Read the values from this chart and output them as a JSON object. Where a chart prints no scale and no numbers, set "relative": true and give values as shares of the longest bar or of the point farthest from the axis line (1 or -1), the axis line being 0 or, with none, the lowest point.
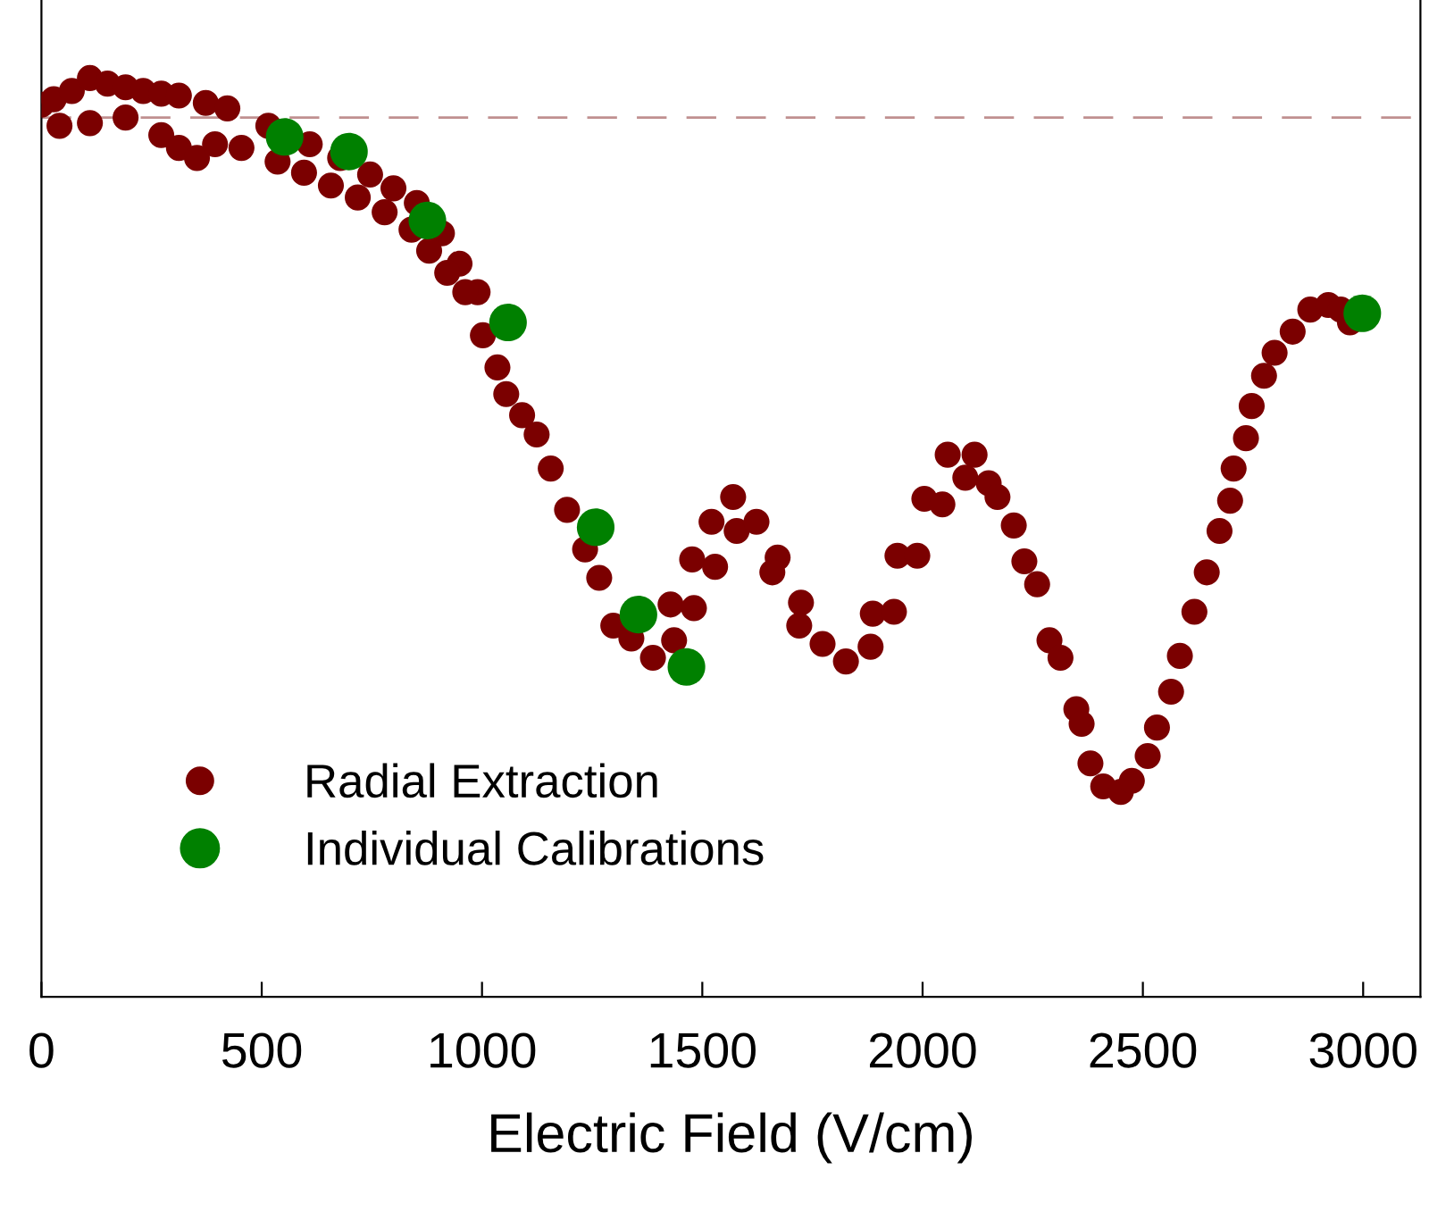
{
  "chart_data": {
    "type": "scatter",
    "relative": true,
    "xlabel": "Electric Field (V/cm)",
    "xlim": [
      0,
      3130
    ],
    "xticks": [
      0,
      500,
      1000,
      1500,
      2000,
      2500,
      3000
    ],
    "grid": false,
    "legend": "bottom left",
    "marker": "circle",
    "tick_labels": "x",
    "ref_lines": [
      {
        "axis": "y",
        "value": 0.957,
        "color": "#c09090",
        "line_style": "dashed"
      }
    ],
    "series": [
      {
        "name": "Radial Extraction",
        "color": "#7b0000",
        "x": [
          0,
          28,
          69,
          110,
          150,
          191,
          231,
          272,
          312,
          373,
          422,
          515,
          609,
          678,
          746,
          799,
          852,
          909,
          949,
          990,
          41,
          110,
          191,
          272,
          312,
          353,
          394,
          454,
          536,
          596,
          657,
          718,
          779,
          840,
          880,
          921,
          962,
          1002,
          1035,
          1055,
          1091,
          1124,
          1156,
          1193,
          1234,
          1266,
          1298,
          1339,
          1388,
          1436,
          1428,
          1481,
          1477,
          1529,
          1521,
          1570,
          1578,
          1623,
          1671,
          1659,
          1724,
          1720,
          1773,
          1826,
          1882,
          1887,
          1935,
          1943,
          1988,
          2004,
          2045,
          2057,
          2118,
          2097,
          2150,
          2170,
          2207,
          2231,
          2260,
          2288,
          2313,
          2349,
          2361,
          2381,
          2410,
          2450,
          2475,
          2511,
          2532,
          2564,
          2584,
          2617,
          2645,
          2674,
          2698,
          2706,
          2734,
          2747,
          2775,
          2799,
          2840,
          2880,
          2921,
          2949,
          2970
        ],
        "values": [
          0.971,
          0.977,
          0.986,
          1.0,
          0.994,
          0.99,
          0.986,
          0.983,
          0.981,
          0.973,
          0.967,
          0.948,
          0.928,
          0.913,
          0.895,
          0.88,
          0.864,
          0.831,
          0.798,
          0.767,
          0.948,
          0.951,
          0.957,
          0.938,
          0.924,
          0.913,
          0.928,
          0.924,
          0.909,
          0.897,
          0.883,
          0.87,
          0.854,
          0.835,
          0.812,
          0.788,
          0.767,
          0.72,
          0.685,
          0.656,
          0.633,
          0.612,
          0.575,
          0.53,
          0.487,
          0.456,
          0.404,
          0.39,
          0.369,
          0.388,
          0.427,
          0.423,
          0.476,
          0.468,
          0.517,
          0.544,
          0.507,
          0.517,
          0.478,
          0.462,
          0.429,
          0.404,
          0.384,
          0.365,
          0.381,
          0.417,
          0.419,
          0.48,
          0.48,
          0.542,
          0.536,
          0.59,
          0.59,
          0.565,
          0.559,
          0.544,
          0.513,
          0.474,
          0.449,
          0.388,
          0.369,
          0.313,
          0.297,
          0.254,
          0.229,
          0.223,
          0.235,
          0.262,
          0.293,
          0.332,
          0.371,
          0.419,
          0.462,
          0.507,
          0.54,
          0.575,
          0.608,
          0.643,
          0.676,
          0.701,
          0.724,
          0.748,
          0.753,
          0.748,
          0.734
        ]
      },
      {
        "name": "Individual Calibrations",
        "color": "#008000",
        "x": [
          552,
          698,
          876,
          1059,
          1258,
          1355,
          1464,
          2998
        ],
        "values": [
          0.936,
          0.92,
          0.845,
          0.734,
          0.511,
          0.416,
          0.359,
          0.744
        ]
      }
    ]
  }
}
